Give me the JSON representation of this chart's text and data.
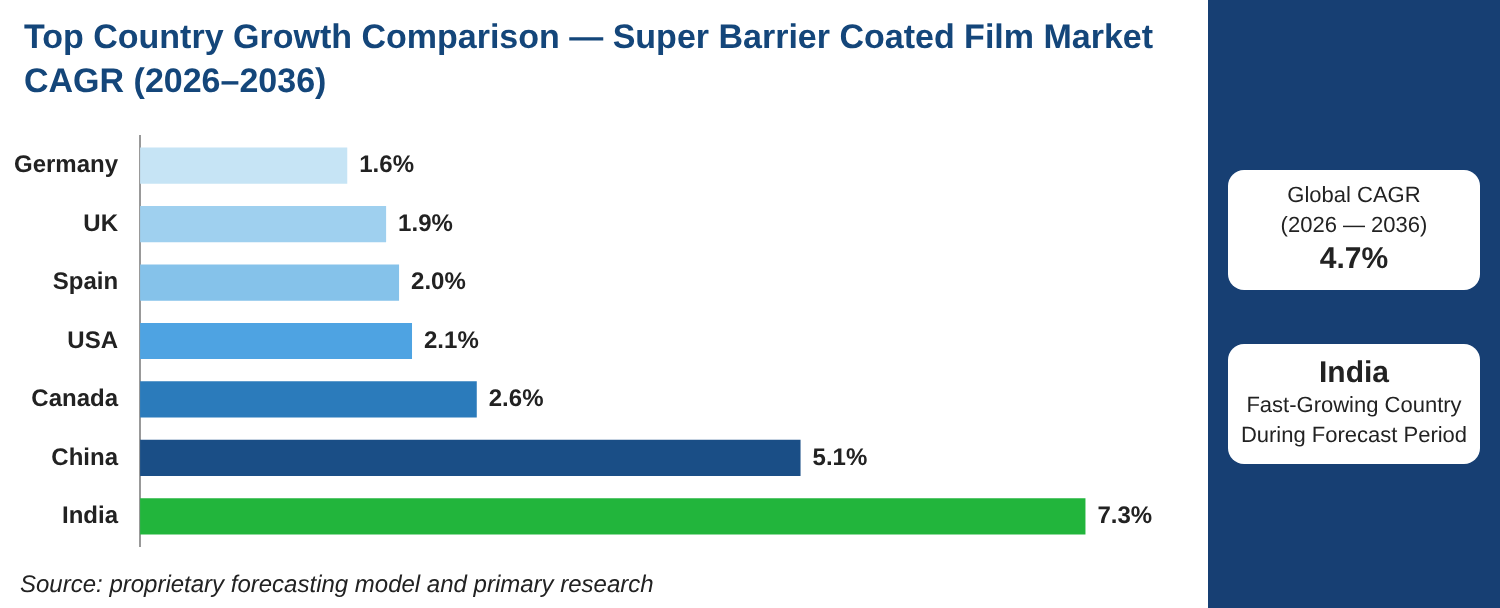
{
  "chart_data": {
    "type": "bar",
    "orientation": "horizontal",
    "title": "Top Country Growth Comparison — Super Barrier Coated Film Market CAGR (2026–2036)",
    "categories": [
      "Germany",
      "UK",
      "Spain",
      "USA",
      "Canada",
      "China",
      "India"
    ],
    "values": [
      1.6,
      1.9,
      2.0,
      2.1,
      2.6,
      5.1,
      7.3
    ],
    "colors": [
      "#c6e4f5",
      "#9fd0ef",
      "#85c2ea",
      "#4ea3e2",
      "#2b7bbb",
      "#1a4e86",
      "#22b53c"
    ],
    "value_labels": [
      "1.6%",
      "1.9%",
      "2.0%",
      "2.1%",
      "2.6%",
      "5.1%",
      "7.3%"
    ],
    "annotations": [
      "Source: proprietary forecasting model and primary research",
      "Global CAGR",
      "(2026 — 2036)",
      "4.7%",
      "India",
      "Fast-Growing Country",
      "During Forecast Period"
    ]
  }
}
